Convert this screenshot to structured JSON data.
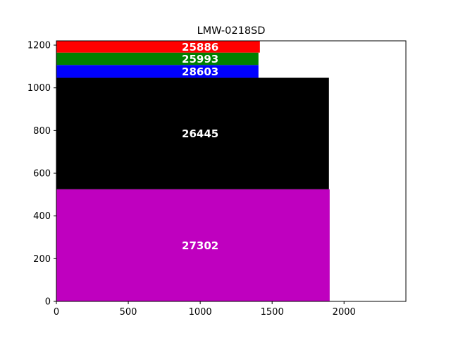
{
  "chart_data": {
    "type": "bar",
    "orientation": "stacked-rectangles",
    "title": "LMW-0218SD",
    "xlabel": "",
    "ylabel": "",
    "xlim": [
      0,
      2430
    ],
    "ylim": [
      0,
      1220
    ],
    "xticks": [
      0,
      500,
      1000,
      1500,
      2000
    ],
    "yticks": [
      0,
      200,
      400,
      600,
      800,
      1000,
      1200
    ],
    "grid": false,
    "rects": [
      {
        "label": "27302",
        "x0": 0,
        "x1": 1900,
        "y0": 0,
        "y1": 525,
        "color": "#bf00bf"
      },
      {
        "label": "26445",
        "x0": 0,
        "x1": 1895,
        "y0": 525,
        "y1": 1047,
        "color": "#000000"
      },
      {
        "label": "28603",
        "x0": 0,
        "x1": 1405,
        "y0": 1047,
        "y1": 1107,
        "color": "#0000ff"
      },
      {
        "label": "25993",
        "x0": 0,
        "x1": 1405,
        "y0": 1107,
        "y1": 1165,
        "color": "#008000"
      },
      {
        "label": "25886",
        "x0": 0,
        "x1": 1415,
        "y0": 1165,
        "y1": 1220,
        "color": "#ff0000"
      }
    ]
  }
}
